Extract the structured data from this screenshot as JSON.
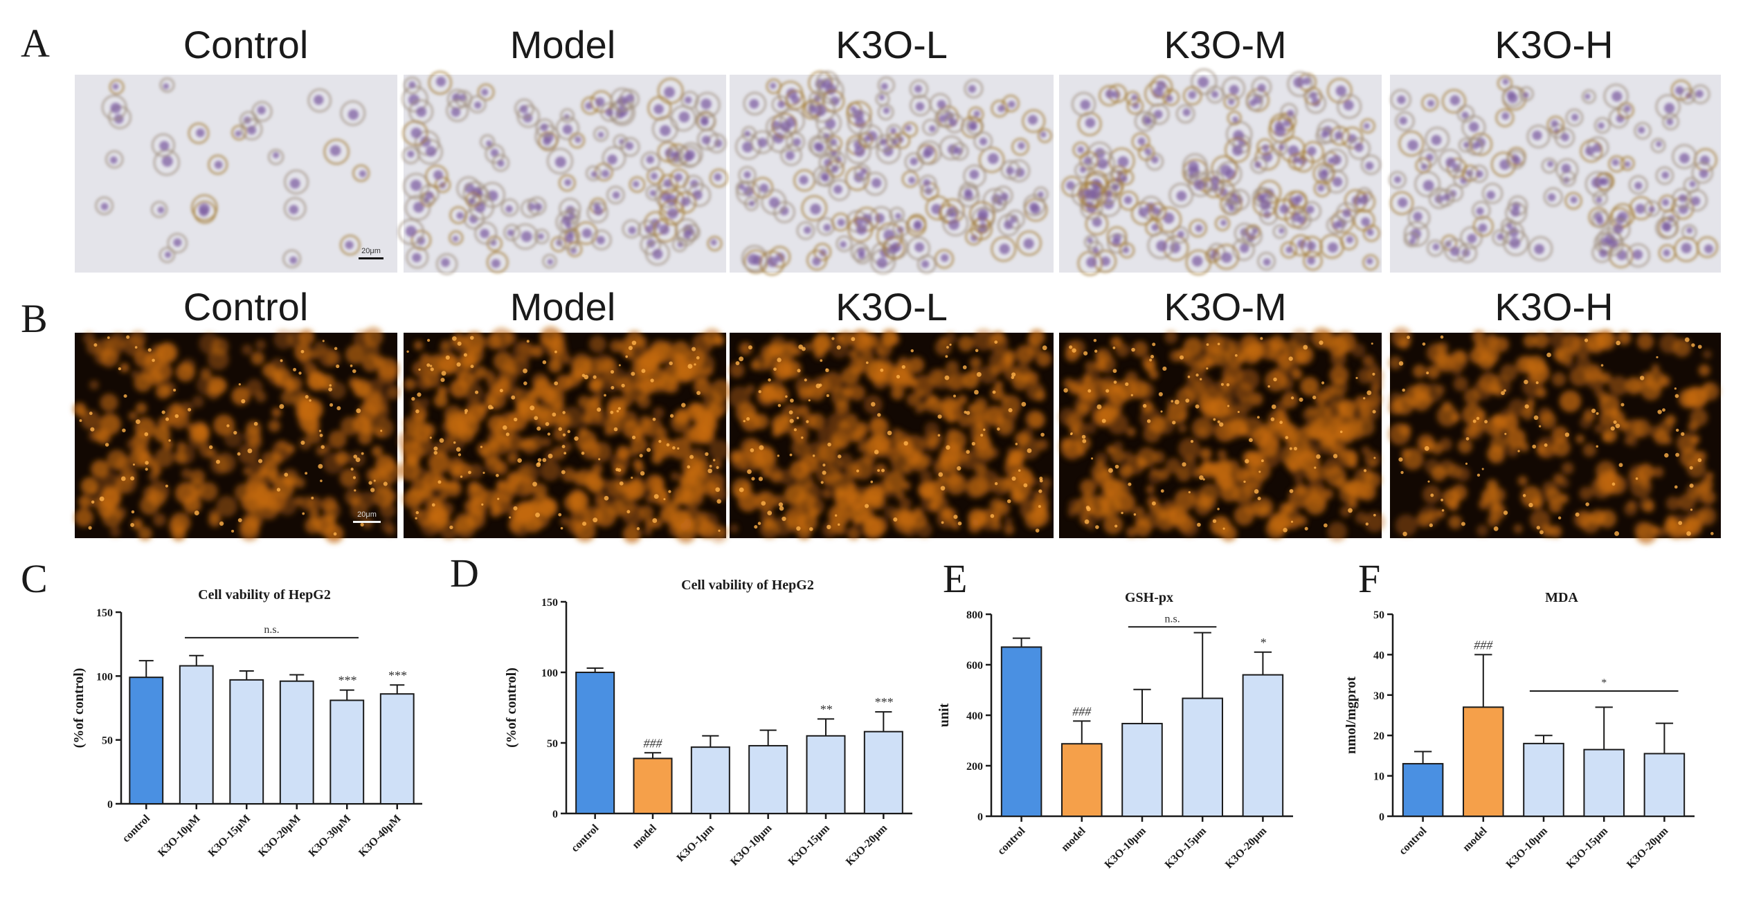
{
  "panel_letters": [
    "A",
    "B",
    "C",
    "D",
    "E",
    "F"
  ],
  "row_a": {
    "labels": [
      "Control",
      "Model",
      "K3O-L",
      "K3O-M",
      "K3O-H"
    ],
    "scale_bar_text": "20μm"
  },
  "row_b": {
    "labels": [
      "Control",
      "Model",
      "K3O-L",
      "K3O-M",
      "K3O-H"
    ],
    "scale_bar_text": "20μm"
  },
  "colors": {
    "control": "#4a90e2",
    "model": "#f5a04a",
    "treatment": "#cfe0f7",
    "bar_outline": "#1a1a1a",
    "stain_bg": "#e4e4ea",
    "stain_cell": "#7e5fa2",
    "stain_lipid": "#a0782e",
    "fluor_bg": "#120802",
    "fluor_cell": "#c46a12",
    "fluor_bright": "#ffb24a"
  },
  "chart_data": [
    {
      "type": "bar",
      "panel": "C",
      "title": "Cell vability of HepG2",
      "ylabel": "(%of control)",
      "xlabel": "",
      "categories": [
        "control",
        "K3O-10μM",
        "K3O-15μM",
        "K3O-20μM",
        "K3O-30μM",
        "K3O-40μM"
      ],
      "values": [
        99,
        108,
        97,
        96,
        81,
        86
      ],
      "errors": [
        13,
        8,
        7,
        5,
        8,
        7
      ],
      "bar_colors": [
        "control",
        "treatment",
        "treatment",
        "treatment",
        "treatment",
        "treatment"
      ],
      "ylim": [
        0,
        150
      ],
      "yticks": [
        "0",
        "50",
        "100",
        "150"
      ],
      "marks": [
        "",
        "",
        "",
        "",
        "***",
        "***"
      ],
      "brackets": [
        {
          "from": 1,
          "to": 4,
          "label": "n.s.",
          "y": 130
        }
      ]
    },
    {
      "type": "bar",
      "panel": "D",
      "title": "Cell vability of HepG2",
      "ylabel": "(%of control)",
      "xlabel": "",
      "categories": [
        "control",
        "model",
        "K3O-1μm",
        "K3O-10μm",
        "K3O-15μm",
        "K3O-20μm"
      ],
      "values": [
        100,
        39,
        47,
        48,
        55,
        58
      ],
      "errors": [
        3,
        4,
        8,
        11,
        12,
        14
      ],
      "bar_colors": [
        "control",
        "model",
        "treatment",
        "treatment",
        "treatment",
        "treatment"
      ],
      "ylim": [
        0,
        150
      ],
      "yticks": [
        "0",
        "50",
        "100",
        "150"
      ],
      "marks": [
        "",
        "###",
        "",
        "",
        "**",
        "***"
      ],
      "brackets": []
    },
    {
      "type": "bar",
      "panel": "E",
      "title": "GSH-px",
      "ylabel": "unit",
      "xlabel": "",
      "categories": [
        "control",
        "model",
        "K3O-10μm",
        "K3O-15μm",
        "K3O-20μm"
      ],
      "values": [
        670,
        287,
        367,
        467,
        560
      ],
      "errors": [
        35,
        90,
        135,
        260,
        90
      ],
      "bar_colors": [
        "control",
        "model",
        "treatment",
        "treatment",
        "treatment"
      ],
      "ylim": [
        0,
        800
      ],
      "yticks": [
        "0",
        "200",
        "400",
        "600",
        "800"
      ],
      "marks": [
        "",
        "###",
        "",
        "",
        "*"
      ],
      "brackets": [
        {
          "from": 2,
          "to": 3,
          "label": "n.s.",
          "y": 750
        }
      ]
    },
    {
      "type": "bar",
      "panel": "F",
      "title": "MDA",
      "ylabel": "nmol/mgprot",
      "xlabel": "",
      "categories": [
        "control",
        "model",
        "K3O-10μm",
        "K3O-15μm",
        "K3O-20μm"
      ],
      "values": [
        13,
        27,
        18,
        16.5,
        15.5
      ],
      "errors": [
        3,
        13,
        2,
        10.5,
        7.5
      ],
      "bar_colors": [
        "control",
        "model",
        "treatment",
        "treatment",
        "treatment"
      ],
      "ylim": [
        0,
        50
      ],
      "yticks": [
        "0",
        "10",
        "20",
        "30",
        "40",
        "50"
      ],
      "marks": [
        "",
        "###",
        "",
        "",
        ""
      ],
      "brackets": [
        {
          "from": 2,
          "to": 4,
          "label": "*",
          "y": 31
        }
      ]
    }
  ]
}
